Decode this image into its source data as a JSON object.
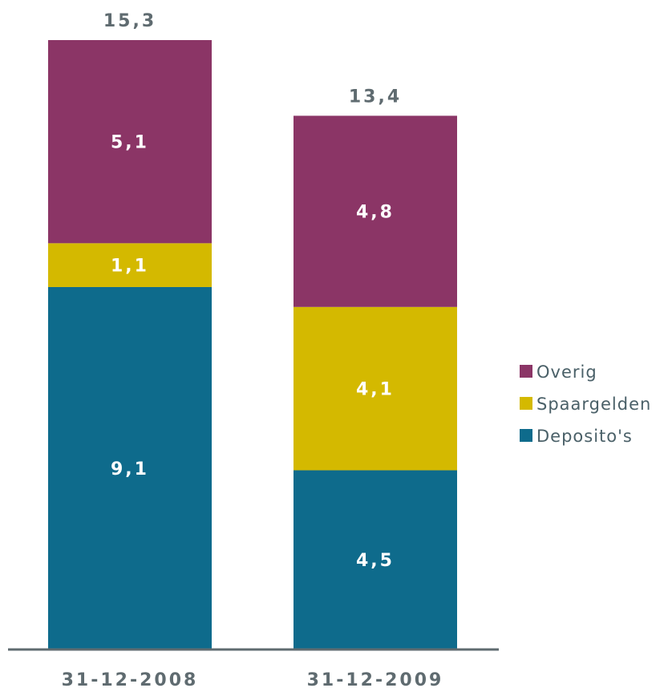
{
  "chart_data": {
    "type": "bar",
    "stacked": true,
    "categories": [
      "31-12-2008",
      "31-12-2009"
    ],
    "series": [
      {
        "name": "Deposito's",
        "color": "#0e6b8c",
        "values": [
          9.1,
          4.5
        ],
        "labels": [
          "9,1",
          "4,5"
        ]
      },
      {
        "name": "Spaargelden",
        "color": "#d4b900",
        "values": [
          1.1,
          4.1
        ],
        "labels": [
          "1,1",
          "4,1"
        ]
      },
      {
        "name": "Overig",
        "color": "#8b3566",
        "values": [
          5.1,
          4.8
        ],
        "labels": [
          "5,1",
          "4,8"
        ]
      }
    ],
    "totals": [
      15.3,
      13.4
    ],
    "total_labels": [
      "15,3",
      "13,4"
    ],
    "legend_order": [
      "Overig",
      "Spaargelden",
      "Deposito's"
    ],
    "legend_position": "right",
    "grid": false,
    "ylim": [
      0,
      15.3
    ],
    "axis_color": "#5f6b70",
    "total_label_color": "#5f6b70",
    "segment_label_color": "#ffffff",
    "legend_text_color": "#4a6068"
  }
}
